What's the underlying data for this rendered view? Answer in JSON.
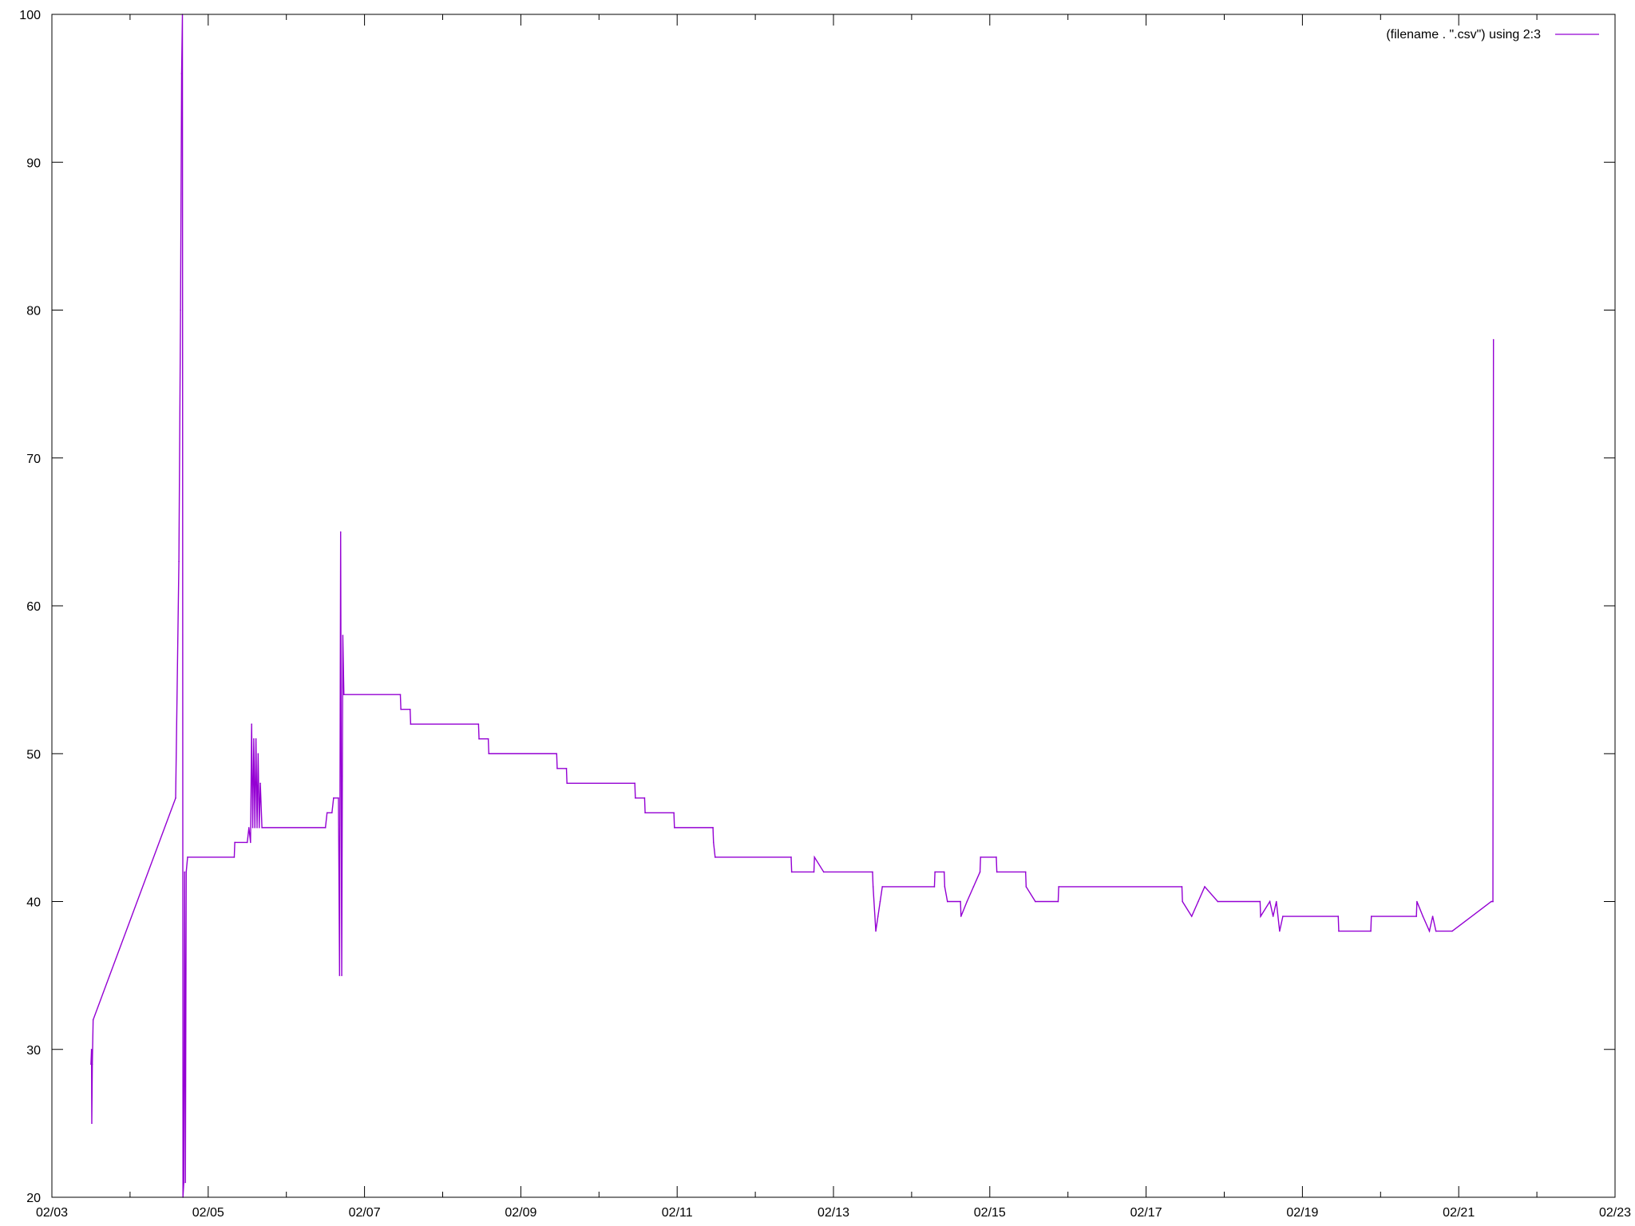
{
  "chart_data": {
    "type": "line",
    "title": "",
    "xlabel": "",
    "ylabel": "",
    "xlim": [
      "2012-02-03",
      "2012-02-23"
    ],
    "ylim": [
      20,
      100
    ],
    "x_ticks": [
      "02/03",
      "02/05",
      "02/07",
      "02/09",
      "02/11",
      "02/13",
      "02/15",
      "02/17",
      "02/19",
      "02/21",
      "02/23"
    ],
    "y_ticks": [
      20,
      30,
      40,
      50,
      60,
      70,
      80,
      90,
      100
    ],
    "grid": false,
    "legend_position": "top-right",
    "series": [
      {
        "name": "(filename . \".csv\") using 2:3",
        "color": "#9400d3",
        "points": [
          [
            "2012-02-03 12:00",
            29
          ],
          [
            "2012-02-03 12:10",
            30
          ],
          [
            "2012-02-03 12:15",
            25
          ],
          [
            "2012-02-03 12:25",
            29
          ],
          [
            "2012-02-03 12:40",
            32
          ],
          [
            "2012-02-04 14:00",
            47
          ],
          [
            "2012-02-04 15:00",
            63
          ],
          [
            "2012-02-04 15:30",
            80
          ],
          [
            "2012-02-04 15:50",
            96
          ],
          [
            "2012-02-04 16:05",
            100
          ],
          [
            "2012-02-04 16:15",
            20
          ],
          [
            "2012-02-04 16:30",
            21
          ],
          [
            "2012-02-04 16:45",
            42
          ],
          [
            "2012-02-04 17:00",
            21
          ],
          [
            "2012-02-04 17:15",
            42
          ],
          [
            "2012-02-04 17:40",
            43
          ],
          [
            "2012-02-05 08:00",
            43
          ],
          [
            "2012-02-05 08:10",
            44
          ],
          [
            "2012-02-05 12:00",
            44
          ],
          [
            "2012-02-05 12:30",
            45
          ],
          [
            "2012-02-05 13:00",
            44
          ],
          [
            "2012-02-05 13:20",
            52
          ],
          [
            "2012-02-05 13:40",
            45
          ],
          [
            "2012-02-05 14:00",
            51
          ],
          [
            "2012-02-05 14:20",
            45
          ],
          [
            "2012-02-05 14:40",
            51
          ],
          [
            "2012-02-05 15:00",
            45
          ],
          [
            "2012-02-05 15:20",
            50
          ],
          [
            "2012-02-05 15:40",
            45
          ],
          [
            "2012-02-05 16:00",
            48
          ],
          [
            "2012-02-05 16:30",
            45
          ],
          [
            "2012-02-06 12:00",
            45
          ],
          [
            "2012-02-06 12:30",
            46
          ],
          [
            "2012-02-06 14:00",
            46
          ],
          [
            "2012-02-06 14:30",
            47
          ],
          [
            "2012-02-06 16:00",
            47
          ],
          [
            "2012-02-06 16:20",
            35
          ],
          [
            "2012-02-06 16:40",
            65
          ],
          [
            "2012-02-06 17:00",
            35
          ],
          [
            "2012-02-06 17:20",
            58
          ],
          [
            "2012-02-06 17:40",
            54
          ],
          [
            "2012-02-07 11:00",
            54
          ],
          [
            "2012-02-07 11:10",
            53
          ],
          [
            "2012-02-07 14:00",
            53
          ],
          [
            "2012-02-07 14:10",
            52
          ],
          [
            "2012-02-08 11:00",
            52
          ],
          [
            "2012-02-08 11:10",
            51
          ],
          [
            "2012-02-08 14:00",
            51
          ],
          [
            "2012-02-08 14:10",
            50
          ],
          [
            "2012-02-09 11:00",
            50
          ],
          [
            "2012-02-09 11:10",
            49
          ],
          [
            "2012-02-09 14:00",
            49
          ],
          [
            "2012-02-09 14:10",
            48
          ],
          [
            "2012-02-10 11:00",
            48
          ],
          [
            "2012-02-10 11:10",
            47
          ],
          [
            "2012-02-10 14:00",
            47
          ],
          [
            "2012-02-10 14:10",
            46
          ],
          [
            "2012-02-10 23:00",
            46
          ],
          [
            "2012-02-10 23:10",
            45
          ],
          [
            "2012-02-11 11:00",
            45
          ],
          [
            "2012-02-11 11:10",
            44
          ],
          [
            "2012-02-11 11:40",
            43
          ],
          [
            "2012-02-12 11:00",
            43
          ],
          [
            "2012-02-12 11:10",
            42
          ],
          [
            "2012-02-12 18:00",
            42
          ],
          [
            "2012-02-12 18:10",
            43
          ],
          [
            "2012-02-12 21:00",
            42
          ],
          [
            "2012-02-13 12:00",
            42
          ],
          [
            "2012-02-13 12:10",
            41
          ],
          [
            "2012-02-13 13:00",
            38
          ],
          [
            "2012-02-13 13:40",
            39
          ],
          [
            "2012-02-13 14:20",
            40
          ],
          [
            "2012-02-13 15:00",
            41
          ],
          [
            "2012-02-14 07:00",
            41
          ],
          [
            "2012-02-14 07:10",
            42
          ],
          [
            "2012-02-14 10:00",
            42
          ],
          [
            "2012-02-14 10:10",
            41
          ],
          [
            "2012-02-14 11:00",
            40
          ],
          [
            "2012-02-14 15:00",
            40
          ],
          [
            "2012-02-14 15:10",
            39
          ],
          [
            "2012-02-14 17:00",
            40
          ],
          [
            "2012-02-14 19:00",
            41
          ],
          [
            "2012-02-14 21:00",
            42
          ],
          [
            "2012-02-14 21:10",
            43
          ],
          [
            "2012-02-15 02:00",
            43
          ],
          [
            "2012-02-15 02:10",
            42
          ],
          [
            "2012-02-15 11:00",
            42
          ],
          [
            "2012-02-15 11:10",
            41
          ],
          [
            "2012-02-15 14:00",
            40
          ],
          [
            "2012-02-15 21:00",
            40
          ],
          [
            "2012-02-15 21:10",
            41
          ],
          [
            "2012-02-17 11:00",
            41
          ],
          [
            "2012-02-17 11:10",
            40
          ],
          [
            "2012-02-17 14:00",
            39
          ],
          [
            "2012-02-17 16:00",
            40
          ],
          [
            "2012-02-17 18:00",
            41
          ],
          [
            "2012-02-17 22:00",
            40
          ],
          [
            "2012-02-18 11:00",
            40
          ],
          [
            "2012-02-18 11:10",
            39
          ],
          [
            "2012-02-18 14:00",
            40
          ],
          [
            "2012-02-18 15:00",
            39
          ],
          [
            "2012-02-18 16:00",
            40
          ],
          [
            "2012-02-18 17:00",
            38
          ],
          [
            "2012-02-18 18:00",
            39
          ],
          [
            "2012-02-19 11:00",
            39
          ],
          [
            "2012-02-19 11:10",
            38
          ],
          [
            "2012-02-19 21:00",
            38
          ],
          [
            "2012-02-19 21:10",
            39
          ],
          [
            "2012-02-20 11:00",
            39
          ],
          [
            "2012-02-20 11:10",
            40
          ],
          [
            "2012-02-20 13:00",
            39
          ],
          [
            "2012-02-20 15:00",
            38
          ],
          [
            "2012-02-20 16:00",
            39
          ],
          [
            "2012-02-20 17:00",
            38
          ],
          [
            "2012-02-20 22:00",
            38
          ],
          [
            "2012-02-21 10:00",
            40
          ],
          [
            "2012-02-21 10:30",
            40
          ],
          [
            "2012-02-21 10:40",
            78
          ]
        ]
      }
    ]
  }
}
